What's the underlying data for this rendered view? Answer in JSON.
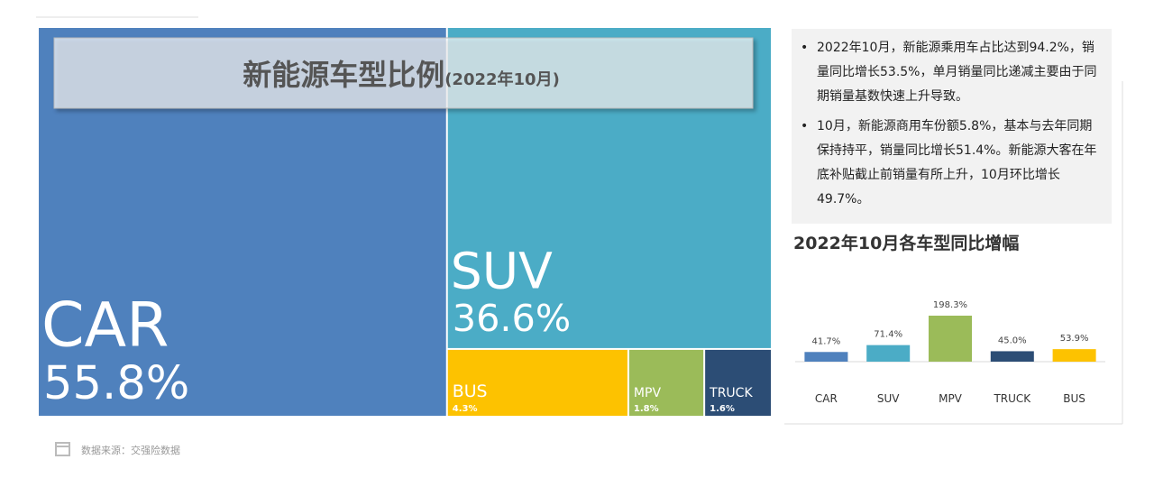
{
  "chart_data": [
    {
      "type": "treemap",
      "title": "新能源车型比例",
      "subtitle": "(2022年10月)",
      "categories": [
        "CAR",
        "SUV",
        "BUS",
        "MPV",
        "TRUCK"
      ],
      "values": [
        55.8,
        36.6,
        4.3,
        1.8,
        1.6
      ],
      "value_labels": [
        "55.8%",
        "36.6%",
        "4.3%",
        "1.8%",
        "1.6%"
      ],
      "colors": [
        "#4f81bd",
        "#4bacc6",
        "#fdc200",
        "#9bbb59",
        "#2c4d75"
      ]
    },
    {
      "type": "bar",
      "title": "2022年10月各车型同比增幅",
      "categories": [
        "CAR",
        "SUV",
        "MPV",
        "TRUCK",
        "BUS"
      ],
      "values": [
        41.7,
        71.4,
        198.3,
        45.0,
        53.9
      ],
      "value_labels": [
        "41.7%",
        "71.4%",
        "198.3%",
        "45.0%",
        "53.9%"
      ],
      "colors": [
        "#4f81bd",
        "#4bacc6",
        "#9bbb59",
        "#2c4d75",
        "#fdc200"
      ]
    }
  ],
  "notes": [
    "2022年10月，新能源乘用车占比达到94.2%，销量同比增长53.5%，单月销量同比递减主要由于同期销量基数快速上升导致。",
    "10月，新能源商用车份额5.8%，基本与去年同期保持持平，销量同比增长51.4%。新能源大客在年底补贴截止前销量有所上升，10月环比增长49.7%。"
  ],
  "source": "数据来源：交强险数据"
}
